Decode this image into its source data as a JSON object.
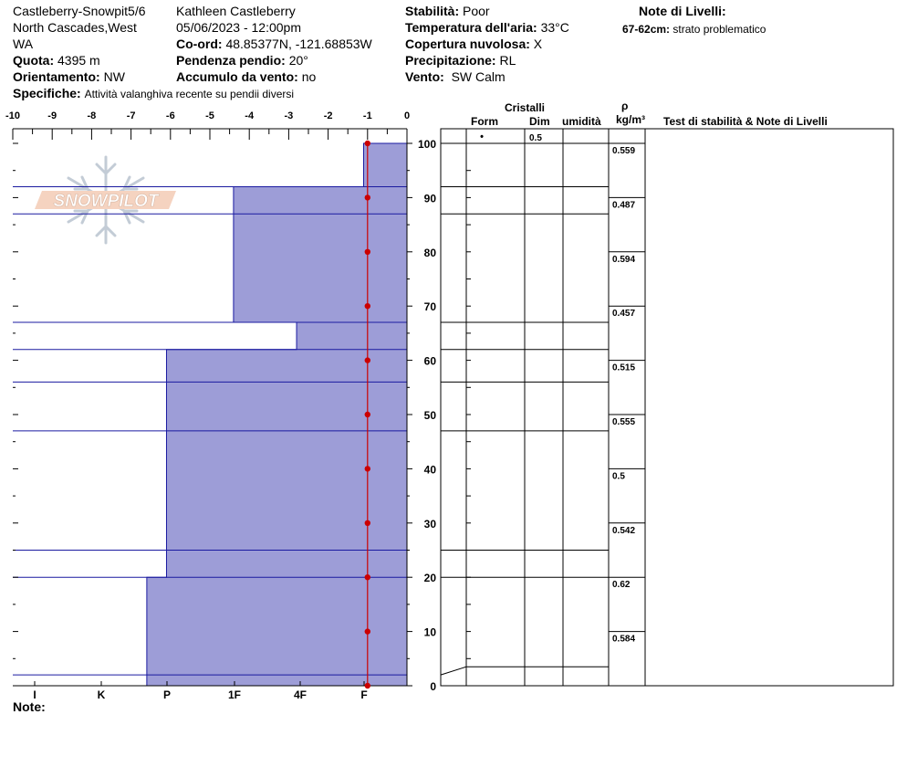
{
  "header": {
    "site": "Castleberry-Snowpit5/6",
    "region_line1": "North Cascades,West",
    "region_line2": "WA",
    "observer": "Kathleen Castleberry",
    "datetime": "05/06/2023 - 12:00pm",
    "elevation_label": "Quota:",
    "elevation_value": "4395 m",
    "coords_label": "Co-ord:",
    "coords_value": "48.85377N, -121.68853W",
    "aspect_label": "Orientamento:",
    "aspect_value": "NW",
    "slope_label": "Pendenza pendio:",
    "slope_value": "20°",
    "wind_loading_label": "Accumulo da vento:",
    "wind_loading_value": "no",
    "specifics_label": "Specifiche:",
    "specifics_value": "Attività valanghiva recente su pendii diversi",
    "stability_label": "Stabilità:",
    "stability_value": "Poor",
    "air_temp_label": "Temperatura dell'aria:",
    "air_temp_value": "33°C",
    "cloud_label": "Copertura nuvolosa:",
    "cloud_value": "X",
    "precip_label": "Precipitazione:",
    "precip_value": "RL",
    "wind_label": "Vento:",
    "wind_value": "SW Calm",
    "layer_notes_title": "Note di Livelli:",
    "layer_note_depth": "67-62cm:",
    "layer_note_text": "strato problematico"
  },
  "logo_text": "SNOWPILOT",
  "footer_note_label": "Note:",
  "table_headers": {
    "crystals": "Cristalli",
    "form": "Form",
    "size": "Dim",
    "moisture": "umidità",
    "rho": "ρ",
    "density_unit": "kg/m³",
    "stability_notes": "Test di stabilità & Note di Livelli"
  },
  "colors": {
    "hardness_fill": "#9d9dd7",
    "layer_line": "#1a1aa0",
    "temp_line": "#cc0000"
  },
  "chart_data": {
    "type": "snow_profile",
    "temp_axis": {
      "ticks": [
        -10,
        -9,
        -8,
        -7,
        -6,
        -5,
        -4,
        -3,
        -2,
        -1,
        0
      ],
      "range": [
        -10,
        0
      ]
    },
    "height_axis": {
      "ticks": [
        0,
        10,
        20,
        30,
        40,
        50,
        60,
        70,
        80,
        90,
        100
      ],
      "range": [
        0,
        100
      ]
    },
    "hardness_axis": {
      "ticks": [
        "I",
        "K",
        "P",
        "1F",
        "4F",
        "F"
      ]
    },
    "hardness_segments": [
      {
        "top": 100,
        "bottom": 92,
        "temp_edge": -1.1
      },
      {
        "top": 92,
        "bottom": 67,
        "temp_edge": -4.4
      },
      {
        "top": 67,
        "bottom": 62,
        "temp_edge": -2.8
      },
      {
        "top": 62,
        "bottom": 20,
        "temp_edge": -6.1
      },
      {
        "top": 20,
        "bottom": 0,
        "temp_edge": -6.6
      }
    ],
    "layer_boundaries": [
      92,
      87,
      67,
      62,
      56,
      47,
      25,
      20,
      2
    ],
    "table_row_boundaries": [
      92,
      87,
      67,
      62,
      56,
      47,
      25,
      20,
      3.5
    ],
    "temperature_profile": [
      {
        "height": 100,
        "temp": -1
      },
      {
        "height": 90,
        "temp": -1
      },
      {
        "height": 80,
        "temp": -1
      },
      {
        "height": 70,
        "temp": -1
      },
      {
        "height": 60,
        "temp": -1
      },
      {
        "height": 50,
        "temp": -1
      },
      {
        "height": 40,
        "temp": -1
      },
      {
        "height": 30,
        "temp": -1
      },
      {
        "height": 20,
        "temp": -1
      },
      {
        "height": 10,
        "temp": -1
      },
      {
        "height": 0,
        "temp": -1
      }
    ],
    "top_layer": {
      "form": "•",
      "size": "0.5"
    },
    "densities": [
      {
        "top": 100,
        "bottom": 90,
        "value": "0.559"
      },
      {
        "top": 90,
        "bottom": 80,
        "value": "0.487"
      },
      {
        "top": 80,
        "bottom": 70,
        "value": "0.594"
      },
      {
        "top": 70,
        "bottom": 60,
        "value": "0.457"
      },
      {
        "top": 60,
        "bottom": 50,
        "value": "0.515"
      },
      {
        "top": 50,
        "bottom": 40,
        "value": "0.555"
      },
      {
        "top": 40,
        "bottom": 30,
        "value": "0.5"
      },
      {
        "top": 30,
        "bottom": 20,
        "value": "0.542"
      },
      {
        "top": 20,
        "bottom": 10,
        "value": "0.62"
      },
      {
        "top": 10,
        "bottom": 0,
        "value": "0.584"
      }
    ]
  }
}
